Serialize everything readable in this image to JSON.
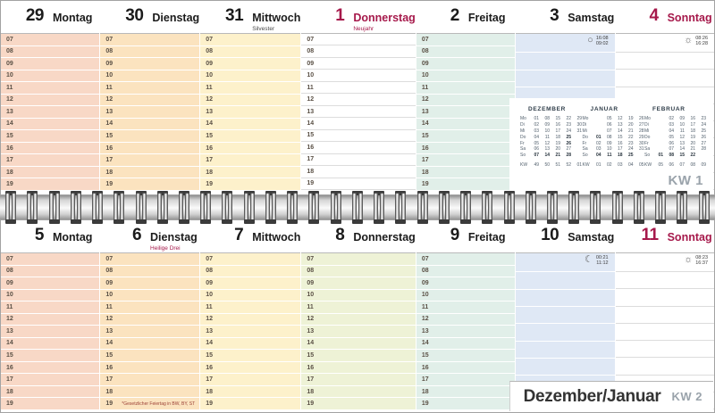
{
  "colors": {
    "holiday_red": "#a6194b",
    "monday": "#f8d8c6",
    "tuesday": "#fbe3bf",
    "wednesday": "#fdf1cb",
    "thursday": "#eef2d6",
    "friday": "#e1efe9",
    "saturday": "#dfe8f5",
    "white": "#ffffff",
    "kw_gray": "#9aa3ab",
    "hour_text": "#5a5045"
  },
  "hours": [
    "07",
    "08",
    "09",
    "10",
    "11",
    "12",
    "13",
    "14",
    "15",
    "16",
    "17",
    "18",
    "19"
  ],
  "weekend_rows": 9,
  "weeks": [
    {
      "kw_label": "KW 1",
      "days": [
        {
          "num": "29",
          "name": "Montag",
          "subtitle": "",
          "color": "monday",
          "red": false,
          "weekend": false
        },
        {
          "num": "30",
          "name": "Dienstag",
          "subtitle": "",
          "color": "tuesday",
          "red": false,
          "weekend": false
        },
        {
          "num": "31",
          "name": "Mittwoch",
          "subtitle": "Silvester",
          "subtitle_red": false,
          "color": "wednesday",
          "red": false,
          "weekend": false
        },
        {
          "num": "1",
          "name": "Donnerstag",
          "subtitle": "Neujahr",
          "subtitle_red": true,
          "color": "white",
          "red": true,
          "weekend": false
        },
        {
          "num": "2",
          "name": "Freitag",
          "subtitle": "",
          "color": "friday",
          "red": false,
          "weekend": false
        },
        {
          "num": "3",
          "name": "Samstag",
          "subtitle": "",
          "color": "saturday",
          "red": false,
          "weekend": true,
          "astro": {
            "icon": "full-moon-icon",
            "time1": "16:08",
            "time2": "09:02"
          }
        },
        {
          "num": "4",
          "name": "Sonntag",
          "subtitle": "",
          "color": "white",
          "red": true,
          "weekend": true,
          "astro": {
            "icon": "sun-icon",
            "time1": "08:26",
            "time2": "16:28"
          }
        }
      ]
    },
    {
      "kw_label": "KW 2",
      "title": "Dezember/Januar",
      "footnote": "*Gesetzlicher Feiertag in BW, BY, ST",
      "days": [
        {
          "num": "5",
          "name": "Montag",
          "subtitle": "",
          "color": "monday",
          "red": false,
          "weekend": false
        },
        {
          "num": "6",
          "name": "Dienstag",
          "subtitle": "Heilige Drei Könige*",
          "subtitle_red": true,
          "color": "tuesday",
          "red": false,
          "weekend": false
        },
        {
          "num": "7",
          "name": "Mittwoch",
          "subtitle": "",
          "color": "wednesday",
          "red": false,
          "weekend": false
        },
        {
          "num": "8",
          "name": "Donnerstag",
          "subtitle": "",
          "color": "thursday",
          "red": false,
          "weekend": false
        },
        {
          "num": "9",
          "name": "Freitag",
          "subtitle": "",
          "color": "friday",
          "red": false,
          "weekend": false
        },
        {
          "num": "10",
          "name": "Samstag",
          "subtitle": "",
          "color": "saturday",
          "red": false,
          "weekend": true,
          "astro": {
            "icon": "crescent-moon-icon",
            "time1": "00:21",
            "time2": "11:12"
          }
        },
        {
          "num": "11",
          "name": "Sonntag",
          "subtitle": "",
          "color": "white",
          "red": true,
          "weekend": true,
          "astro": {
            "icon": "sun-icon",
            "time1": "08:23",
            "time2": "16:37"
          }
        }
      ]
    }
  ],
  "mini_calendar": {
    "months": [
      {
        "name": "DEZEMBER",
        "rows": [
          [
            "Mo",
            "01",
            "08",
            "15",
            "22",
            "29"
          ],
          [
            "Di",
            "02",
            "09",
            "16",
            "23",
            "30"
          ],
          [
            "Mi",
            "03",
            "10",
            "17",
            "24",
            "31"
          ],
          [
            "Do",
            "04",
            "11",
            "18",
            "*25",
            ""
          ],
          [
            "Fr",
            "05",
            "12",
            "19",
            "*26",
            ""
          ],
          [
            "Sa",
            "06",
            "13",
            "20",
            "27",
            ""
          ],
          [
            "So",
            "*07",
            "*14",
            "*21",
            "*28",
            ""
          ]
        ],
        "kw_row": [
          "KW",
          "49",
          "50",
          "51",
          "52",
          "01"
        ]
      },
      {
        "name": "JANUAR",
        "rows": [
          [
            "Mo",
            "",
            "05",
            "12",
            "19",
            "26"
          ],
          [
            "Di",
            "",
            "06",
            "13",
            "20",
            "27"
          ],
          [
            "Mi",
            "",
            "07",
            "14",
            "21",
            "28"
          ],
          [
            "Do",
            "*01",
            "08",
            "15",
            "22",
            "29"
          ],
          [
            "Fr",
            "02",
            "09",
            "16",
            "23",
            "30"
          ],
          [
            "Sa",
            "03",
            "10",
            "17",
            "24",
            "31"
          ],
          [
            "So",
            "*04",
            "*11",
            "*18",
            "*25",
            ""
          ]
        ],
        "kw_row": [
          "KW",
          "01",
          "02",
          "03",
          "04",
          "05"
        ]
      },
      {
        "name": "FEBRUAR",
        "rows": [
          [
            "Mo",
            "",
            "02",
            "09",
            "16",
            "23"
          ],
          [
            "Di",
            "",
            "03",
            "10",
            "17",
            "24"
          ],
          [
            "Mi",
            "",
            "04",
            "11",
            "18",
            "25"
          ],
          [
            "Do",
            "",
            "05",
            "12",
            "19",
            "26"
          ],
          [
            "Fr",
            "",
            "06",
            "13",
            "20",
            "27"
          ],
          [
            "Sa",
            "",
            "07",
            "14",
            "21",
            "28"
          ],
          [
            "So",
            "*01",
            "*08",
            "*15",
            "*22",
            ""
          ]
        ],
        "kw_row": [
          "KW",
          "05",
          "06",
          "07",
          "08",
          "09"
        ]
      }
    ]
  }
}
